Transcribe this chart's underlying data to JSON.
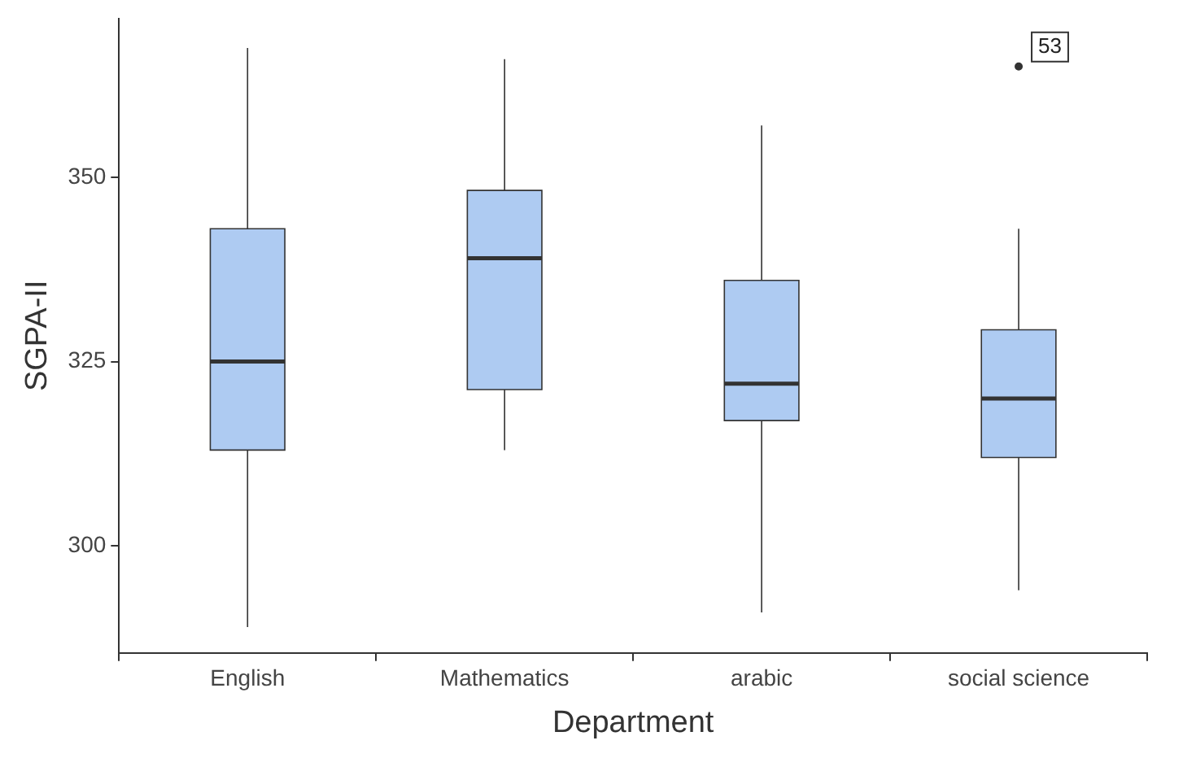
{
  "chart_data": {
    "type": "box",
    "xlabel": "Department",
    "ylabel": "SGPA-II",
    "categories": [
      "English",
      "Mathematics",
      "arabic",
      "social science"
    ],
    "color": "#aecbf2",
    "boxes": [
      {
        "low": 289,
        "q1": 313,
        "median": 325,
        "q3": 343,
        "high": 367.5
      },
      {
        "low": 313,
        "q1": 321.2,
        "median": 339,
        "q3": 348.2,
        "high": 366
      },
      {
        "low": 291,
        "q1": 317,
        "median": 322,
        "q3": 336,
        "high": 357
      },
      {
        "low": 294,
        "q1": 312,
        "median": 320,
        "q3": 329.3,
        "high": 343,
        "outliers": [
          365
        ]
      }
    ],
    "ylim": [
      285.5,
      371.5
    ],
    "yticks": [
      300,
      325,
      350
    ],
    "annotations": [
      "53"
    ]
  }
}
